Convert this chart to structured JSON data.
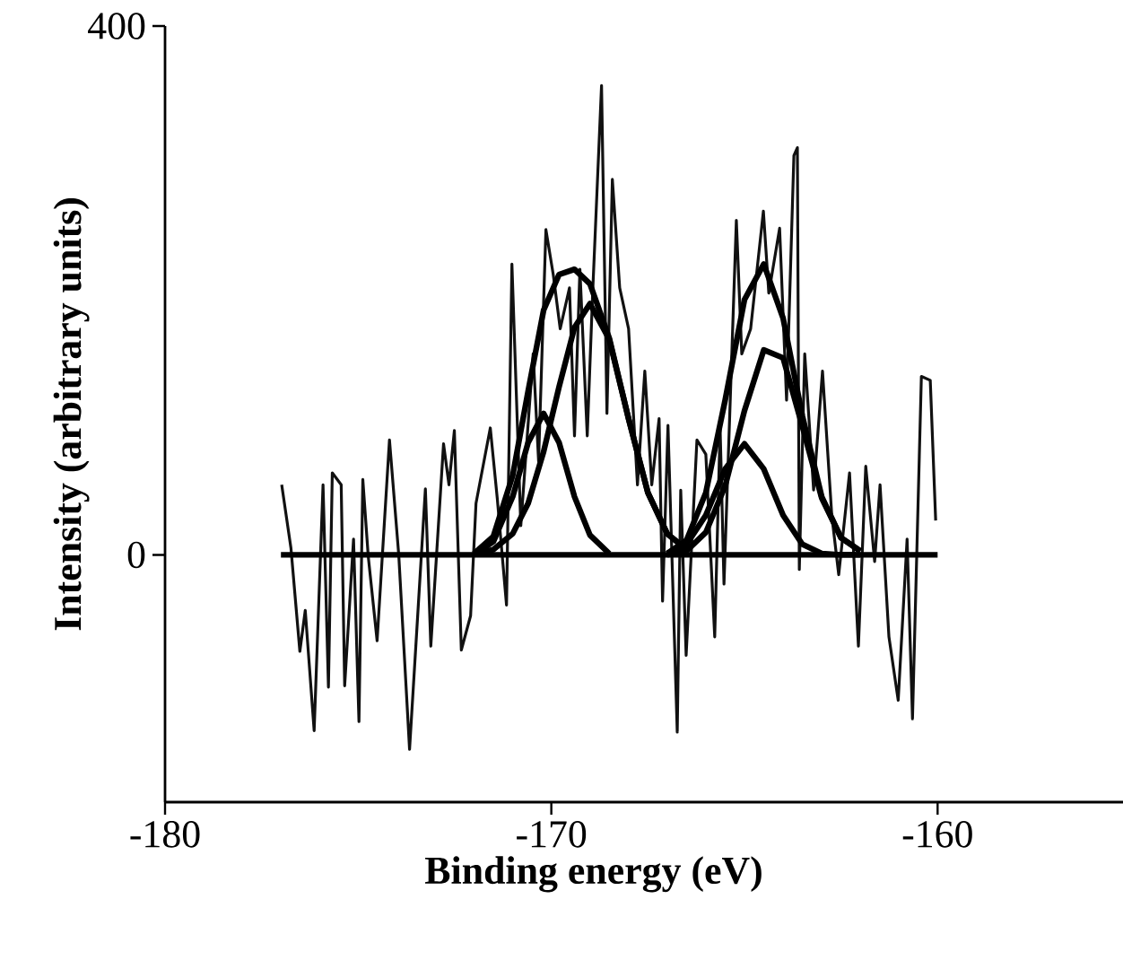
{
  "chart_data": {
    "type": "line",
    "xlabel": "Binding energy (eV)",
    "ylabel": "Intensity (arbitrary units)",
    "xlim": [
      -180,
      -155.2
    ],
    "ylim": [
      -187,
      400
    ],
    "xticks": [
      -180,
      -170,
      -160
    ],
    "yticks": [
      0,
      400
    ],
    "grid": false,
    "marker": "none",
    "line_style": "solid",
    "series": [
      {
        "color": "#111111",
        "x": [
          -176.98,
          -176.74,
          -176.51,
          -176.37,
          -176.14,
          -175.91,
          -175.77,
          -175.67,
          -175.44,
          -175.35,
          -175.12,
          -174.98,
          -174.88,
          -174.74,
          -174.51,
          -174.19,
          -173.95,
          -173.67,
          -173.26,
          -173.12,
          -172.79,
          -172.65,
          -172.51,
          -172.33,
          -172.09,
          -171.95,
          -171.58,
          -171.4,
          -171.16,
          -171.02,
          -170.79,
          -170.47,
          -170.33,
          -170.14,
          -169.95,
          -169.77,
          -169.53,
          -169.4,
          -169.26,
          -169.07,
          -168.93,
          -168.7,
          -168.56,
          -168.42,
          -168.23,
          -168.0,
          -167.77,
          -167.58,
          -167.4,
          -167.21,
          -167.12,
          -166.98,
          -166.74,
          -166.65,
          -166.51,
          -166.23,
          -166.0,
          -165.77,
          -165.63,
          -165.53,
          -165.21,
          -165.07,
          -164.84,
          -164.51,
          -164.37,
          -164.09,
          -163.91,
          -163.72,
          -163.63,
          -163.58,
          -163.44,
          -163.21,
          -162.98,
          -162.74,
          -162.56,
          -162.28,
          -162.05,
          -161.86,
          -161.63,
          -161.49,
          -161.26,
          -161.02,
          -160.79,
          -160.65,
          -160.42,
          -160.19,
          -160.05
        ],
        "values": [
          53,
          5,
          -73,
          -42,
          -133,
          53,
          -100,
          62,
          53,
          -99,
          12,
          -126,
          57,
          -1,
          -65,
          87,
          0,
          -147,
          50,
          -69,
          84,
          53,
          94,
          -72,
          -46,
          39,
          96,
          43,
          -38,
          220,
          22,
          152,
          71,
          246,
          212,
          171,
          202,
          90,
          216,
          90,
          198,
          355,
          107,
          284,
          202,
          171,
          53,
          139,
          53,
          103,
          -35,
          98,
          -134,
          49,
          -76,
          87,
          76,
          -62,
          96,
          -22,
          253,
          152,
          171,
          260,
          198,
          247,
          117,
          302,
          308,
          -11,
          152,
          49,
          139,
          30,
          -15,
          62,
          -69,
          67,
          -5,
          53,
          -62,
          -110,
          12,
          -124,
          135,
          132,
          26
        ]
      },
      {
        "color": "#000000",
        "x": [
          -172,
          -171.5,
          -171,
          -170.6,
          -170.2,
          -169.8,
          -169.4,
          -169,
          -168.5
        ],
        "values": [
          0,
          10,
          44,
          85,
          107,
          85,
          44,
          15,
          1
        ]
      },
      {
        "color": "#000000",
        "x": [
          -172,
          -171.5,
          -171,
          -170.6,
          -170.2,
          -169.8,
          -169.4,
          -169,
          -168.5,
          -168,
          -167.5,
          -167,
          -166.5
        ],
        "values": [
          1,
          4,
          16,
          39,
          78,
          127,
          172,
          190,
          163,
          103,
          47,
          16,
          4
        ]
      },
      {
        "color": "#000000",
        "x": [
          -172,
          -171.5,
          -171,
          -170.6,
          -170.2,
          -169.8,
          -169.4,
          -169,
          -168.5,
          -168,
          -167.5,
          -167,
          -166.5
        ],
        "values": [
          1,
          14,
          60,
          124,
          185,
          212,
          216,
          205,
          164,
          103,
          47,
          16,
          4
        ]
      },
      {
        "color": "#000000",
        "x": [
          -167,
          -166.5,
          -166,
          -165.5,
          -165,
          -164.5,
          -164,
          -163.5,
          -163,
          -162.5,
          -162
        ],
        "values": [
          1,
          8,
          30,
          65,
          84,
          65,
          30,
          8,
          1,
          0,
          0
        ]
      },
      {
        "color": "#000000",
        "x": [
          -167,
          -166.5,
          -166,
          -165.5,
          -165,
          -164.5,
          -164,
          -163.5,
          -163,
          -162.5,
          -162
        ],
        "values": [
          0,
          3,
          17,
          52,
          109,
          155,
          149,
          97,
          43,
          13,
          3
        ]
      },
      {
        "color": "#000000",
        "x": [
          -167,
          -166.5,
          -166,
          -165.5,
          -165,
          -164.5,
          -164,
          -163.5,
          -163,
          -162.5,
          -162
        ],
        "values": [
          1,
          11,
          47,
          117,
          193,
          220,
          179,
          105,
          44,
          13,
          3
        ]
      },
      {
        "color": "#000000",
        "x": [
          -177,
          -160
        ],
        "values": [
          0,
          0
        ]
      }
    ]
  }
}
